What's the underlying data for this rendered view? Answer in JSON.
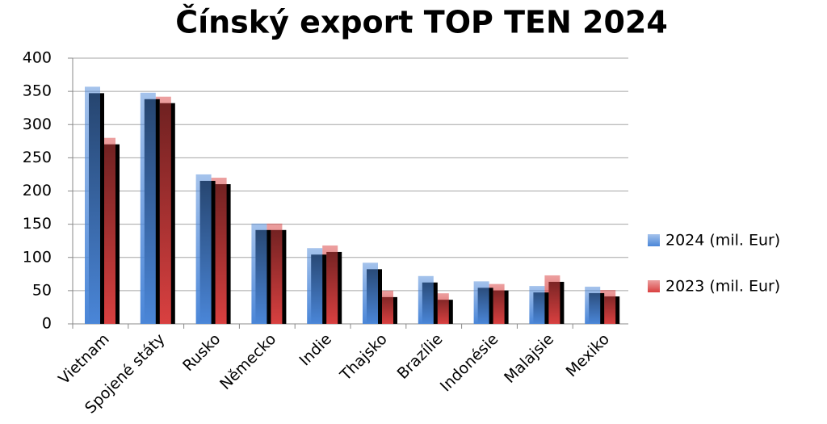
{
  "chart_data": {
    "type": "bar",
    "title": "Čínský export TOP TEN 2024",
    "categories": [
      "Vietnam",
      "Spojené státy",
      "Rusko",
      "Německo",
      "Indie",
      "Thajsko",
      "Brazílie",
      "Indonésie",
      "Malajsie",
      "Mexiko"
    ],
    "series": [
      {
        "name": "2024 (mil. Eur)",
        "color": "#4a86d8",
        "values": [
          357,
          348,
          225,
          151,
          114,
          92,
          72,
          64,
          57,
          56
        ]
      },
      {
        "name": "2023 (mil. Eur)",
        "color": "#d94040",
        "values": [
          280,
          342,
          220,
          151,
          118,
          50,
          46,
          60,
          73,
          51
        ]
      }
    ],
    "ylim": [
      0,
      400
    ],
    "yticks": [
      0,
      50,
      100,
      150,
      200,
      250,
      300,
      350,
      400
    ],
    "grid": true,
    "legend": "right"
  }
}
